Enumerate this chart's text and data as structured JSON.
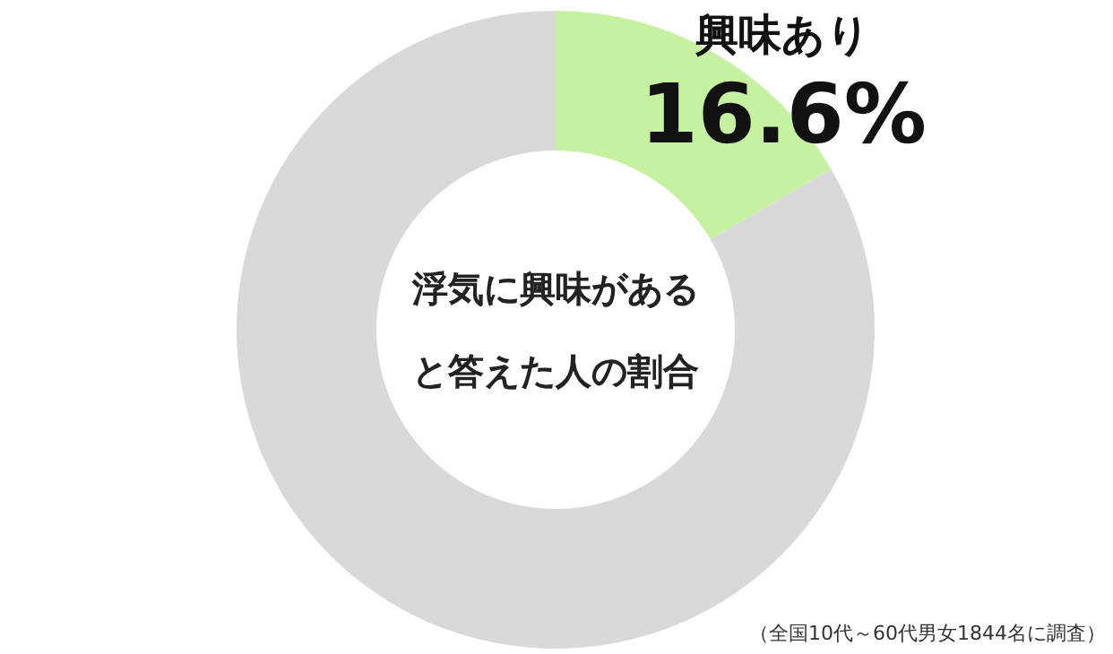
{
  "chart_data": {
    "type": "donut",
    "title": "浮気に興味があると答えた人の割合",
    "categories": [
      "興味あり",
      null
    ],
    "values": [
      16.6,
      83.4
    ],
    "colors": [
      "#c6f1a1",
      "#d9d9d9"
    ],
    "value_labels": [
      "16.6%",
      null
    ],
    "annotations": [
      "（全国10代～60代男女1844名に調査）"
    ]
  }
}
